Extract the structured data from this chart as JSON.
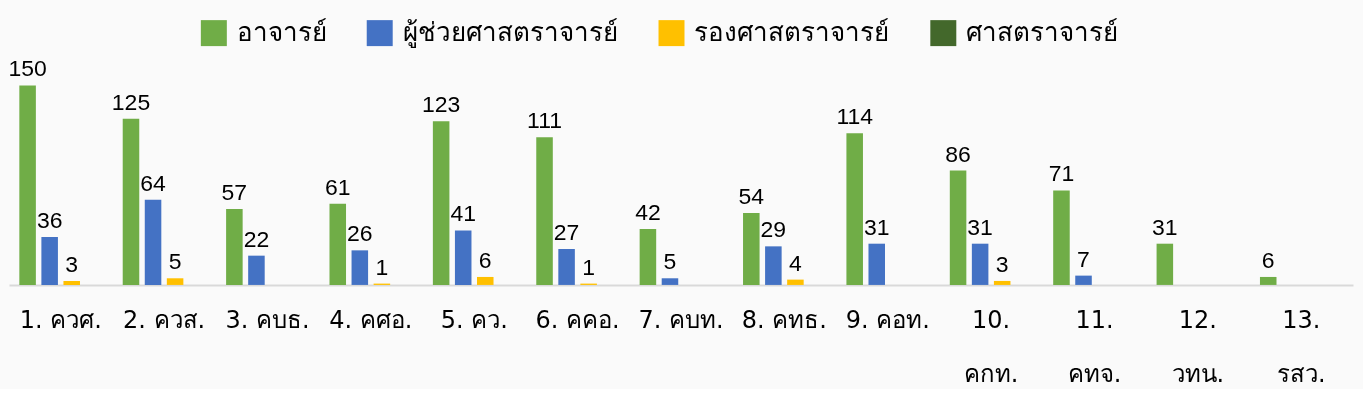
{
  "chart_data": {
    "type": "bar",
    "categories": [
      "1. ควศ.",
      "2. ควส.",
      "3. คบธ.",
      "4. คศอ.",
      "5. คว.",
      "6. คคอ.",
      "7. คบท.",
      "8. คทธ.",
      "9. คอท.",
      "10. คกท.",
      "11. คทจ.",
      "12. วทน.",
      "13. รสว."
    ],
    "series": [
      {
        "name": "อาจารย์",
        "color": "#70ad47",
        "values": [
          150,
          125,
          57,
          61,
          123,
          111,
          42,
          54,
          114,
          86,
          71,
          31,
          6
        ]
      },
      {
        "name": "ผู้ช่วยศาสตราจารย์",
        "color": "#4472c4",
        "values": [
          36,
          64,
          22,
          26,
          41,
          27,
          5,
          29,
          31,
          31,
          7,
          null,
          null
        ]
      },
      {
        "name": "รองศาสตราจารย์",
        "color": "#ffc000",
        "values": [
          3,
          5,
          null,
          1,
          6,
          1,
          null,
          4,
          null,
          3,
          null,
          null,
          null
        ]
      },
      {
        "name": "ศาสตราจารย์",
        "color": "#43682b",
        "values": [
          null,
          null,
          null,
          null,
          null,
          null,
          null,
          null,
          null,
          null,
          null,
          null,
          null
        ]
      }
    ],
    "data_labels": true,
    "legend": "top",
    "tick_labels": "x"
  }
}
